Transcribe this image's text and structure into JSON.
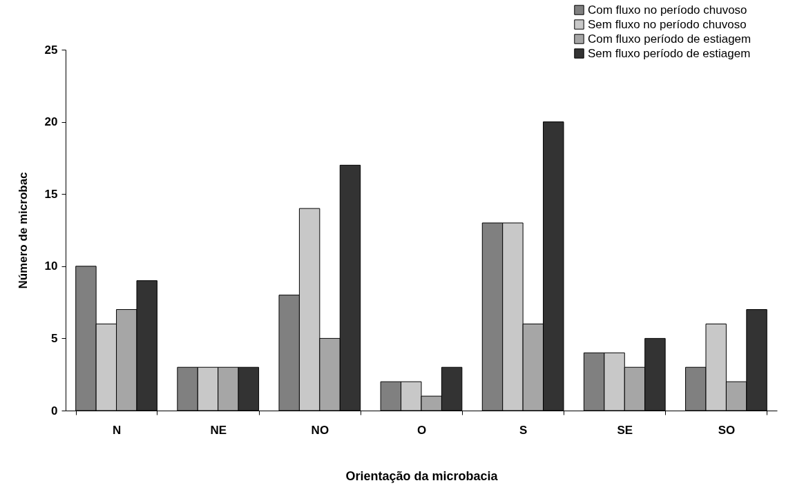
{
  "chart_data": {
    "type": "bar",
    "xlabel": "Orientação da microbacia",
    "ylabel": "Número de microbac",
    "categories": [
      "N",
      "NE",
      "NO",
      "O",
      "S",
      "SE",
      "SO"
    ],
    "series": [
      {
        "name": "Com fluxo no período chuvoso",
        "color": "#808080",
        "values": [
          10,
          3,
          8,
          2,
          13,
          4,
          3
        ]
      },
      {
        "name": "Sem fluxo no período chuvoso",
        "color": "#c8c8c8",
        "values": [
          6,
          3,
          14,
          2,
          13,
          4,
          6
        ]
      },
      {
        "name": "Com fluxo período de estiagem",
        "color": "#a6a6a6",
        "values": [
          7,
          3,
          5,
          1,
          6,
          3,
          2
        ]
      },
      {
        "name": "Sem fluxo período de estiagem",
        "color": "#333333",
        "values": [
          9,
          3,
          17,
          3,
          20,
          5,
          7
        ]
      }
    ],
    "ylim": [
      0,
      25
    ],
    "yticks": [
      0,
      5,
      10,
      15,
      20,
      25
    ],
    "grid": false,
    "legend": "top right"
  }
}
